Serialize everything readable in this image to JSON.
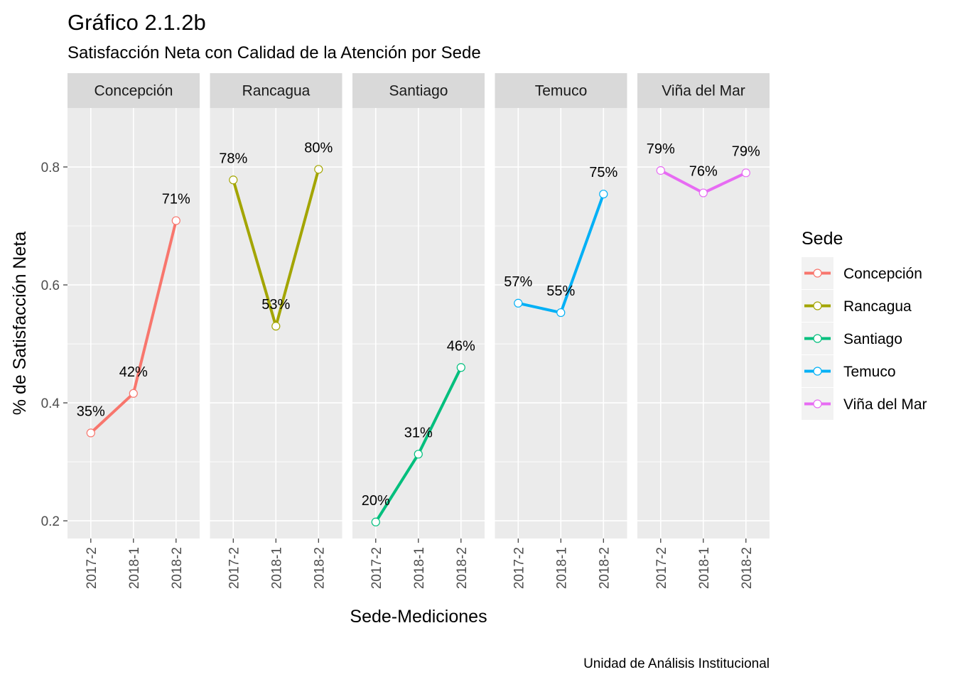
{
  "chart_data": {
    "type": "line",
    "title": "Gráfico 2.1.2b",
    "subtitle": "Satisfacción Neta con Calidad de la Atención por Sede",
    "xlabel": "Sede-Mediciones",
    "ylabel": "% de Satisfacción Neta",
    "caption": "Unidad de Análisis Institucional",
    "categories": [
      "2017-2",
      "2018-1",
      "2018-2"
    ],
    "ylim": [
      0.17,
      0.9
    ],
    "yticks": [
      0.2,
      0.4,
      0.6,
      0.8
    ],
    "ytick_labels": [
      "0.2",
      "0.4",
      "0.6",
      "0.8"
    ],
    "grid": true,
    "legend": {
      "title": "Sede",
      "position": "right"
    },
    "series": [
      {
        "name": "Concepción",
        "color": "#F8766D",
        "values": [
          0.349,
          0.416,
          0.709
        ],
        "labels": [
          "35%",
          "42%",
          "71%"
        ]
      },
      {
        "name": "Rancagua",
        "color": "#A3A500",
        "values": [
          0.778,
          0.53,
          0.796
        ],
        "labels": [
          "78%",
          "53%",
          "80%"
        ]
      },
      {
        "name": "Santiago",
        "color": "#00BF7D",
        "values": [
          0.198,
          0.313,
          0.46
        ],
        "labels": [
          "20%",
          "31%",
          "46%"
        ]
      },
      {
        "name": "Temuco",
        "color": "#00B0F6",
        "values": [
          0.569,
          0.553,
          0.754
        ],
        "labels": [
          "57%",
          "55%",
          "75%"
        ]
      },
      {
        "name": "Viña del Mar",
        "color": "#E76BF3",
        "values": [
          0.794,
          0.756,
          0.79
        ],
        "labels": [
          "79%",
          "76%",
          "79%"
        ]
      }
    ]
  }
}
